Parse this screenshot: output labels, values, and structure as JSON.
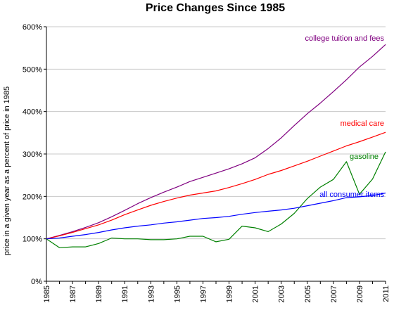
{
  "chart_data": {
    "type": "line",
    "title": "Price Changes Since 1985",
    "xlabel": "",
    "ylabel": "price in a given year as a percent of price in 1985",
    "x": [
      1985,
      1986,
      1987,
      1988,
      1989,
      1990,
      1991,
      1992,
      1993,
      1994,
      1995,
      1996,
      1997,
      1998,
      1999,
      2000,
      2001,
      2002,
      2003,
      2004,
      2005,
      2006,
      2007,
      2008,
      2009,
      2010,
      2011
    ],
    "xticks": [
      "1985",
      "1987",
      "1989",
      "1991",
      "1993",
      "1995",
      "1997",
      "1999",
      "2001",
      "2003",
      "2005",
      "2007",
      "2009",
      "2011"
    ],
    "ylim": [
      0,
      600
    ],
    "yticks": [
      0,
      100,
      200,
      300,
      400,
      500,
      600
    ],
    "ytick_labels": [
      "0%",
      "100%",
      "200%",
      "300%",
      "400%",
      "500%",
      "600%"
    ],
    "grid": true,
    "series": [
      {
        "name": "college tuition and fees",
        "color": "#800080",
        "values": [
          100,
          108,
          117,
          127,
          138,
          152,
          167,
          183,
          197,
          210,
          222,
          235,
          245,
          255,
          265,
          277,
          291,
          313,
          338,
          367,
          395,
          420,
          447,
          475,
          505,
          530,
          558
        ]
      },
      {
        "name": "medical care",
        "color": "#ff0000",
        "values": [
          100,
          107,
          115,
          124,
          133,
          144,
          157,
          168,
          179,
          188,
          196,
          203,
          208,
          213,
          221,
          230,
          240,
          252,
          261,
          272,
          283,
          295,
          307,
          319,
          329,
          340,
          351
        ]
      },
      {
        "name": "gasoline",
        "color": "#008000",
        "values": [
          100,
          79,
          81,
          81,
          89,
          102,
          100,
          100,
          98,
          98,
          100,
          106,
          106,
          93,
          99,
          130,
          126,
          117,
          135,
          160,
          195,
          222,
          240,
          282,
          205,
          241,
          305
        ]
      },
      {
        "name": "all consumer items",
        "color": "#0000ff",
        "values": [
          100,
          102,
          106,
          110,
          115,
          121,
          126,
          130,
          133,
          137,
          140,
          144,
          148,
          150,
          153,
          158,
          162,
          165,
          168,
          172,
          178,
          184,
          190,
          197,
          199,
          202,
          208
        ]
      }
    ]
  }
}
